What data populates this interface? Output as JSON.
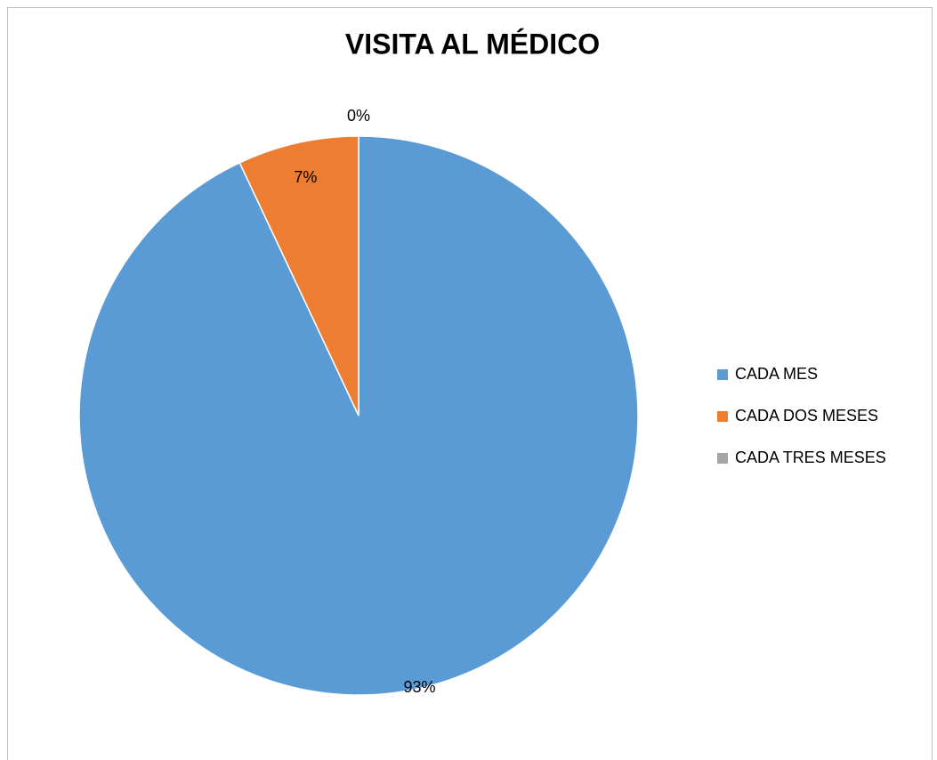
{
  "chart_data": {
    "type": "pie",
    "title": "VISITA AL MÉDICO",
    "categories": [
      "CADA MES",
      "CADA DOS MESES",
      "CADA TRES MESES"
    ],
    "values": [
      93,
      7,
      0
    ],
    "value_labels": [
      "93%",
      "7%",
      "0%"
    ],
    "colors": [
      "#5b9bd5",
      "#ed7d31",
      "#a5a5a5"
    ],
    "legend": "right"
  }
}
